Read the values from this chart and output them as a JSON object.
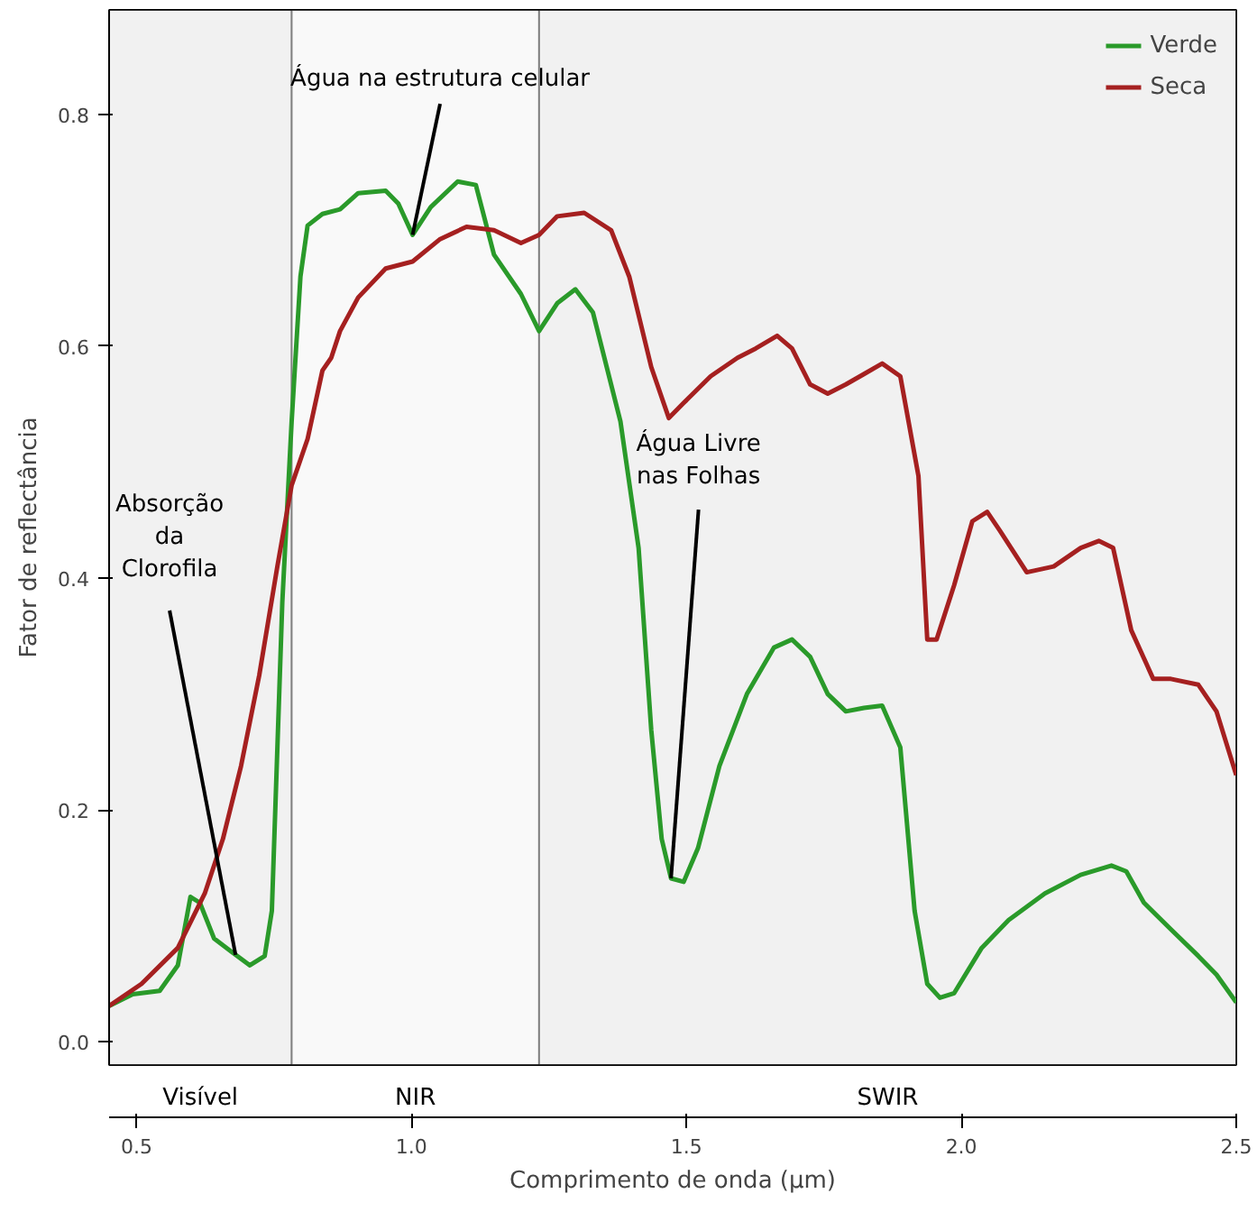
{
  "chart_data": {
    "type": "line",
    "xlabel": "Comprimento de onda (µm)",
    "ylabel": "Fator de reflectância",
    "xlim": [
      0.45,
      2.5
    ],
    "ylim": [
      -0.02,
      0.89
    ],
    "xticks": [
      0.5,
      {
        "value": 1,
        "label": "1.0"
      },
      1.5,
      {
        "value": 2,
        "label": "2.0"
      },
      2.5
    ],
    "yticks": [
      {
        "value": 0,
        "label": "0.0"
      },
      0.2,
      0.4,
      0.6,
      0.8
    ],
    "grid": false,
    "legend": "top right",
    "marker": "none",
    "line_style": "solid",
    "series": [
      {
        "name": "Verde",
        "color": "#2a9a2a",
        "x": [
          0.45,
          0.493,
          0.542,
          0.575,
          0.598,
          0.615,
          0.641,
          0.68,
          0.706,
          0.733,
          0.746,
          0.765,
          0.782,
          0.798,
          0.811,
          0.838,
          0.87,
          0.903,
          0.953,
          0.976,
          1.002,
          1.035,
          1.084,
          1.117,
          1.15,
          1.199,
          1.232,
          1.265,
          1.298,
          1.33,
          1.38,
          1.413,
          1.436,
          1.455,
          1.472,
          1.495,
          1.521,
          1.56,
          1.61,
          1.659,
          1.692,
          1.725,
          1.757,
          1.79,
          1.823,
          1.856,
          1.889,
          1.915,
          1.938,
          1.961,
          1.987,
          2.037,
          2.086,
          2.152,
          2.217,
          2.273,
          2.3,
          2.332,
          2.381,
          2.431,
          2.464,
          2.5
        ],
        "values": [
          0.031,
          0.041,
          0.044,
          0.066,
          0.125,
          0.12,
          0.089,
          0.075,
          0.066,
          0.074,
          0.113,
          0.379,
          0.535,
          0.66,
          0.704,
          0.714,
          0.718,
          0.732,
          0.734,
          0.723,
          0.696,
          0.72,
          0.742,
          0.739,
          0.679,
          0.645,
          0.613,
          0.637,
          0.649,
          0.629,
          0.535,
          0.426,
          0.269,
          0.175,
          0.141,
          0.138,
          0.167,
          0.238,
          0.3,
          0.34,
          0.347,
          0.332,
          0.3,
          0.285,
          0.288,
          0.29,
          0.254,
          0.113,
          0.05,
          0.038,
          0.042,
          0.081,
          0.105,
          0.128,
          0.144,
          0.152,
          0.147,
          0.12,
          0.097,
          0.074,
          0.058,
          0.034
        ]
      },
      {
        "name": "Seca",
        "color": "#a52020",
        "x": [
          0.45,
          0.509,
          0.575,
          0.624,
          0.657,
          0.69,
          0.723,
          0.756,
          0.782,
          0.811,
          0.838,
          0.854,
          0.87,
          0.903,
          0.953,
          1.002,
          1.051,
          1.1,
          1.15,
          1.199,
          1.232,
          1.265,
          1.314,
          1.363,
          1.396,
          1.436,
          1.468,
          1.495,
          1.544,
          1.593,
          1.626,
          1.665,
          1.692,
          1.725,
          1.757,
          1.79,
          1.823,
          1.856,
          1.889,
          1.922,
          1.938,
          1.955,
          1.987,
          2.02,
          2.047,
          2.07,
          2.119,
          2.168,
          2.217,
          2.25,
          2.276,
          2.309,
          2.349,
          2.381,
          2.431,
          2.464,
          2.5
        ],
        "values": [
          0.031,
          0.05,
          0.081,
          0.128,
          0.175,
          0.238,
          0.316,
          0.41,
          0.48,
          0.52,
          0.579,
          0.59,
          0.613,
          0.642,
          0.667,
          0.673,
          0.692,
          0.703,
          0.7,
          0.689,
          0.696,
          0.712,
          0.715,
          0.7,
          0.66,
          0.582,
          0.538,
          0.551,
          0.574,
          0.59,
          0.598,
          0.609,
          0.598,
          0.567,
          0.559,
          0.567,
          0.576,
          0.585,
          0.574,
          0.488,
          0.347,
          0.347,
          0.394,
          0.449,
          0.457,
          0.441,
          0.405,
          0.41,
          0.426,
          0.432,
          0.426,
          0.355,
          0.313,
          0.313,
          0.308,
          0.285,
          0.23
        ]
      }
    ],
    "annotations": [
      {
        "text": "Água na estrutura celular",
        "x": 1.002,
        "y": 0.696
      },
      {
        "text": "Absorção\nda\nClorofila",
        "x": 0.68,
        "y": 0.075
      },
      {
        "text": "Água Livre\nnas Folhas",
        "x": 1.472,
        "y": 0.141
      }
    ],
    "bands": [
      {
        "axis": "x",
        "from": 0.45,
        "to": 0.782,
        "label": "Visível"
      },
      {
        "axis": "x",
        "from": 0.782,
        "to": 1.232,
        "label": "NIR"
      },
      {
        "axis": "x",
        "from": 1.232,
        "to": 2.5,
        "label": "SWIR"
      }
    ]
  }
}
